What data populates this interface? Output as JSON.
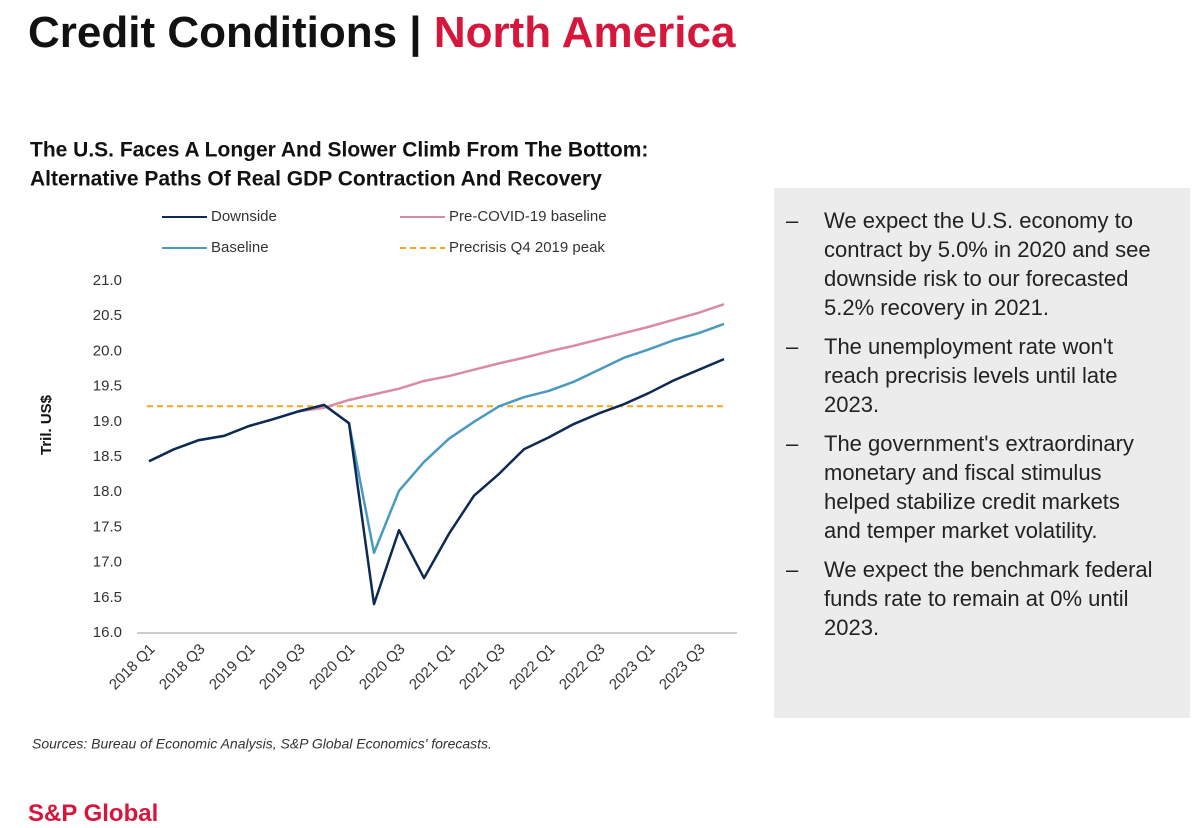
{
  "header": {
    "title": "Credit Conditions |",
    "region": "North America"
  },
  "chart_data": {
    "type": "line",
    "title": "The U.S. Faces A Longer And Slower Climb From The Bottom:",
    "subtitle": "Alternative Paths Of Real GDP Contraction And Recovery",
    "y_label": "Tril. US$",
    "categories": [
      "2018 Q1",
      null,
      "2018 Q3",
      null,
      "2019 Q1",
      null,
      "2019 Q3",
      null,
      "2020 Q1",
      null,
      "2020 Q3",
      null,
      "2021 Q1",
      null,
      "2021 Q3",
      null,
      "2022 Q1",
      null,
      "2022 Q3",
      null,
      "2023 Q1",
      null,
      "2023 Q3",
      null
    ],
    "series": [
      {
        "name": "Downside",
        "color": "#0d2a52",
        "values": [
          18.44,
          18.61,
          18.74,
          18.8,
          18.94,
          19.04,
          19.15,
          19.24,
          18.98,
          16.41,
          17.46,
          16.78,
          17.41,
          17.95,
          18.26,
          18.61,
          18.78,
          18.97,
          19.12,
          19.25,
          19.41,
          19.59,
          19.74,
          19.89
        ]
      },
      {
        "name": "Baseline",
        "color": "#4a9ac0",
        "values": [
          18.44,
          18.61,
          18.74,
          18.8,
          18.94,
          19.04,
          19.15,
          19.24,
          18.98,
          17.14,
          18.02,
          18.43,
          18.76,
          19.0,
          19.22,
          19.35,
          19.44,
          19.57,
          19.74,
          19.91,
          20.03,
          20.16,
          20.26,
          20.39
        ]
      },
      {
        "name": "Pre-COVID-19 baseline",
        "color": "#d98aa8",
        "values": [
          null,
          null,
          null,
          null,
          null,
          null,
          19.15,
          19.2,
          19.31,
          19.39,
          19.47,
          19.58,
          19.65,
          19.74,
          19.83,
          19.91,
          20.0,
          20.08,
          20.17,
          20.26,
          20.35,
          20.45,
          20.55,
          20.67
        ]
      }
    ],
    "reference_line": {
      "name": "Precrisis Q4 2019 peak",
      "value": 19.22,
      "color": "#f5a623"
    },
    "ylim": [
      16,
      21
    ],
    "yticks": [
      {
        "value": 16,
        "label": "16.0"
      },
      {
        "value": 16.5,
        "label": "16.5"
      },
      {
        "value": 17,
        "label": "17.0"
      },
      {
        "value": 17.5,
        "label": "17.5"
      },
      {
        "value": 18,
        "label": "18.0"
      },
      {
        "value": 18.5,
        "label": "18.5"
      },
      {
        "value": 19,
        "label": "19.0"
      },
      {
        "value": 19.5,
        "label": "19.5"
      },
      {
        "value": 20,
        "label": "20.0"
      },
      {
        "value": 20.5,
        "label": "20.5"
      },
      {
        "value": 21,
        "label": "21.0"
      }
    ],
    "grid": false,
    "source": "Sources: Bureau of Economic Analysis, S&P Global Economics' forecasts."
  },
  "bullets": [
    "We expect the U.S. economy to contract by 5.0% in 2020 and see downside risk to our forecasted 5.2% recovery in 2021.",
    "The unemployment rate won't reach precrisis levels until late 2023.",
    "The government's extraordinary monetary and fiscal stimulus helped stabilize credit markets and temper market volatility.",
    "We expect the benchmark federal funds rate to remain at 0% until 2023."
  ],
  "footer": {
    "logo": "S&P Global"
  }
}
